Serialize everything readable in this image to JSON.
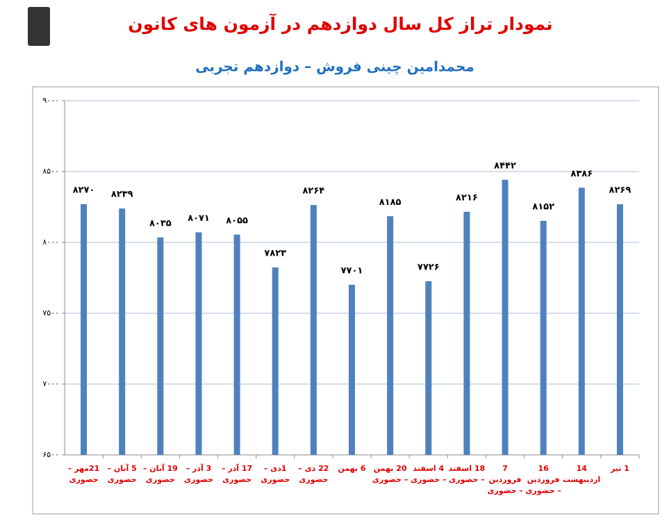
{
  "chart_data": {
    "type": "bar",
    "title": "نمودار تراز کل سال دوازدهم در آزمون های کانون",
    "subtitle": "محمدامین چینی فروش – دوازدهم تجربی",
    "categories": [
      "21مهر – حضوری",
      "5 آبان – حضوری",
      "19 آبان – حضوری",
      "3 آذر – حضوری",
      "17 آذر – حضوری",
      "1دی – حضوری",
      "22 دی – حضوری",
      "6 بهمن",
      "20 بهمن – حضوری",
      "4 اسفند – حضوری",
      "18 اسفند – حضوری",
      "7 فروردین – حضوری",
      "16 فروردین – حضوری",
      "14 اردیبهشت",
      "1 تیر"
    ],
    "values": [
      8270,
      8239,
      8035,
      8071,
      8055,
      7823,
      8264,
      7701,
      8185,
      7726,
      8216,
      8442,
      8152,
      8386,
      8269
    ],
    "value_labels": [
      "۸۲۷۰",
      "۸۲۳۹",
      "۸۰۳۵",
      "۸۰۷۱",
      "۸۰۵۵",
      "۷۸۲۳",
      "۸۲۶۴",
      "۷۷۰۱",
      "۸۱۸۵",
      "۷۷۲۶",
      "۸۲۱۶",
      "۸۴۴۲",
      "۸۱۵۲",
      "۸۳۸۶",
      "۸۲۶۹"
    ],
    "color": "#4f81bd",
    "ylim": [
      6500,
      9000
    ],
    "yticks": [
      {
        "value": 6500,
        "label": "۶۵۰۰"
      },
      {
        "value": 7000,
        "label": "۷۰۰۰"
      },
      {
        "value": 7500,
        "label": "۷۵۰۰"
      },
      {
        "value": 8000,
        "label": "۸۰۰۰"
      },
      {
        "value": 8500,
        "label": "۸۵۰۰"
      },
      {
        "value": 9000,
        "label": "۹۰۰۰"
      }
    ],
    "grid": true
  }
}
